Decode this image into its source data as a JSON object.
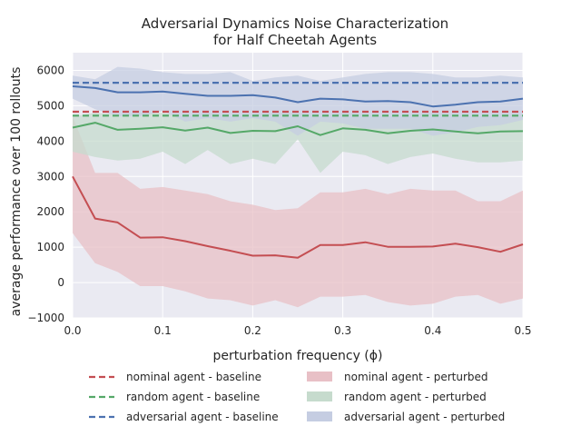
{
  "chart_data": {
    "type": "line",
    "title": "Adversarial Dynamics Noise Characterization",
    "subtitle": "for Half Cheetah Agents",
    "xlabel": "perturbation frequency (ϕ)",
    "ylabel": "average performance over 100 rollouts",
    "xlim": [
      0.0,
      0.5
    ],
    "ylim": [
      -1000,
      6500
    ],
    "xticks": [
      0.0,
      0.1,
      0.2,
      0.3,
      0.4,
      0.5
    ],
    "xtick_labels": [
      "0.0",
      "0.1",
      "0.2",
      "0.3",
      "0.4",
      "0.5"
    ],
    "yticks": [
      -1000,
      0,
      1000,
      2000,
      3000,
      4000,
      5000,
      6000
    ],
    "ytick_labels": [
      "−1000",
      "0",
      "1000",
      "2000",
      "3000",
      "4000",
      "5000",
      "6000"
    ],
    "grid": true,
    "legend_position": "below plot, two columns",
    "x": [
      0.0,
      0.025,
      0.05,
      0.075,
      0.1,
      0.125,
      0.15,
      0.175,
      0.2,
      0.225,
      0.25,
      0.275,
      0.3,
      0.325,
      0.35,
      0.375,
      0.4,
      0.425,
      0.45,
      0.475,
      0.5
    ],
    "baselines": [
      {
        "name": "nominal agent - baseline",
        "value": 4830,
        "color": "#c44e52"
      },
      {
        "name": "random agent - baseline",
        "value": 4720,
        "color": "#55a868"
      },
      {
        "name": "adversarial agent - baseline",
        "value": 5650,
        "color": "#4c72b0"
      }
    ],
    "series": [
      {
        "name": "nominal agent - perturbed",
        "color": "#c44e52",
        "fill": "#e8c0c6",
        "mean": [
          3000,
          1810,
          1700,
          1270,
          1280,
          1170,
          1030,
          900,
          760,
          770,
          700,
          1060,
          1060,
          1140,
          1010,
          1010,
          1020,
          1100,
          1000,
          870,
          1080
        ],
        "upper": [
          4700,
          3100,
          3100,
          2650,
          2700,
          2600,
          2500,
          2300,
          2200,
          2050,
          2100,
          2550,
          2550,
          2650,
          2500,
          2650,
          2600,
          2600,
          2300,
          2300,
          2600
        ],
        "lower": [
          1400,
          550,
          300,
          -100,
          -100,
          -250,
          -450,
          -500,
          -650,
          -500,
          -700,
          -400,
          -400,
          -350,
          -550,
          -650,
          -600,
          -400,
          -350,
          -600,
          -450
        ]
      },
      {
        "name": "random agent - perturbed",
        "color": "#55a868",
        "fill": "#c6dbcd",
        "mean": [
          4380,
          4520,
          4320,
          4350,
          4390,
          4300,
          4380,
          4230,
          4290,
          4280,
          4420,
          4170,
          4360,
          4320,
          4220,
          4290,
          4330,
          4270,
          4220,
          4270,
          4280
        ],
        "upper": [
          4700,
          4800,
          4750,
          4800,
          4800,
          4700,
          4800,
          4700,
          4750,
          4800,
          4800,
          4700,
          4800,
          4750,
          4700,
          4750,
          4800,
          4750,
          4700,
          4750,
          4750
        ],
        "lower": [
          3700,
          3550,
          3450,
          3500,
          3700,
          3350,
          3750,
          3350,
          3500,
          3350,
          4050,
          3100,
          3700,
          3600,
          3350,
          3550,
          3650,
          3500,
          3400,
          3400,
          3450
        ]
      },
      {
        "name": "adversarial agent - perturbed",
        "color": "#4c72b0",
        "fill": "#c5cde2",
        "mean": [
          5550,
          5500,
          5380,
          5380,
          5400,
          5340,
          5280,
          5280,
          5300,
          5230,
          5100,
          5200,
          5180,
          5120,
          5130,
          5100,
          4980,
          5030,
          5100,
          5120,
          5200
        ],
        "upper": [
          5850,
          5750,
          6100,
          6050,
          5950,
          5900,
          5900,
          5950,
          5700,
          5800,
          5850,
          5700,
          5800,
          5900,
          5950,
          5950,
          5900,
          5800,
          5800,
          5850,
          5800
        ],
        "lower": [
          5200,
          4900,
          4700,
          4700,
          4850,
          4550,
          4650,
          4550,
          4650,
          4550,
          4150,
          4550,
          4500,
          4350,
          4350,
          4350,
          4150,
          4250,
          4400,
          4450,
          4600
        ]
      }
    ],
    "legend": [
      {
        "label": "nominal agent - baseline",
        "style": "dashed",
        "color": "#c44e52"
      },
      {
        "label": "nominal agent - perturbed",
        "style": "patch",
        "color": "#e8c0c6"
      },
      {
        "label": "random agent - baseline",
        "style": "dashed",
        "color": "#55a868"
      },
      {
        "label": "random agent - perturbed",
        "style": "patch",
        "color": "#c6dbcd"
      },
      {
        "label": "adversarial agent - baseline",
        "style": "dashed",
        "color": "#4c72b0"
      },
      {
        "label": "adversarial agent - perturbed",
        "style": "patch",
        "color": "#c5cde2"
      }
    ]
  },
  "colors": {
    "plot_background": "#eaeaf2",
    "grid": "#ffffff",
    "text": "#262626"
  }
}
